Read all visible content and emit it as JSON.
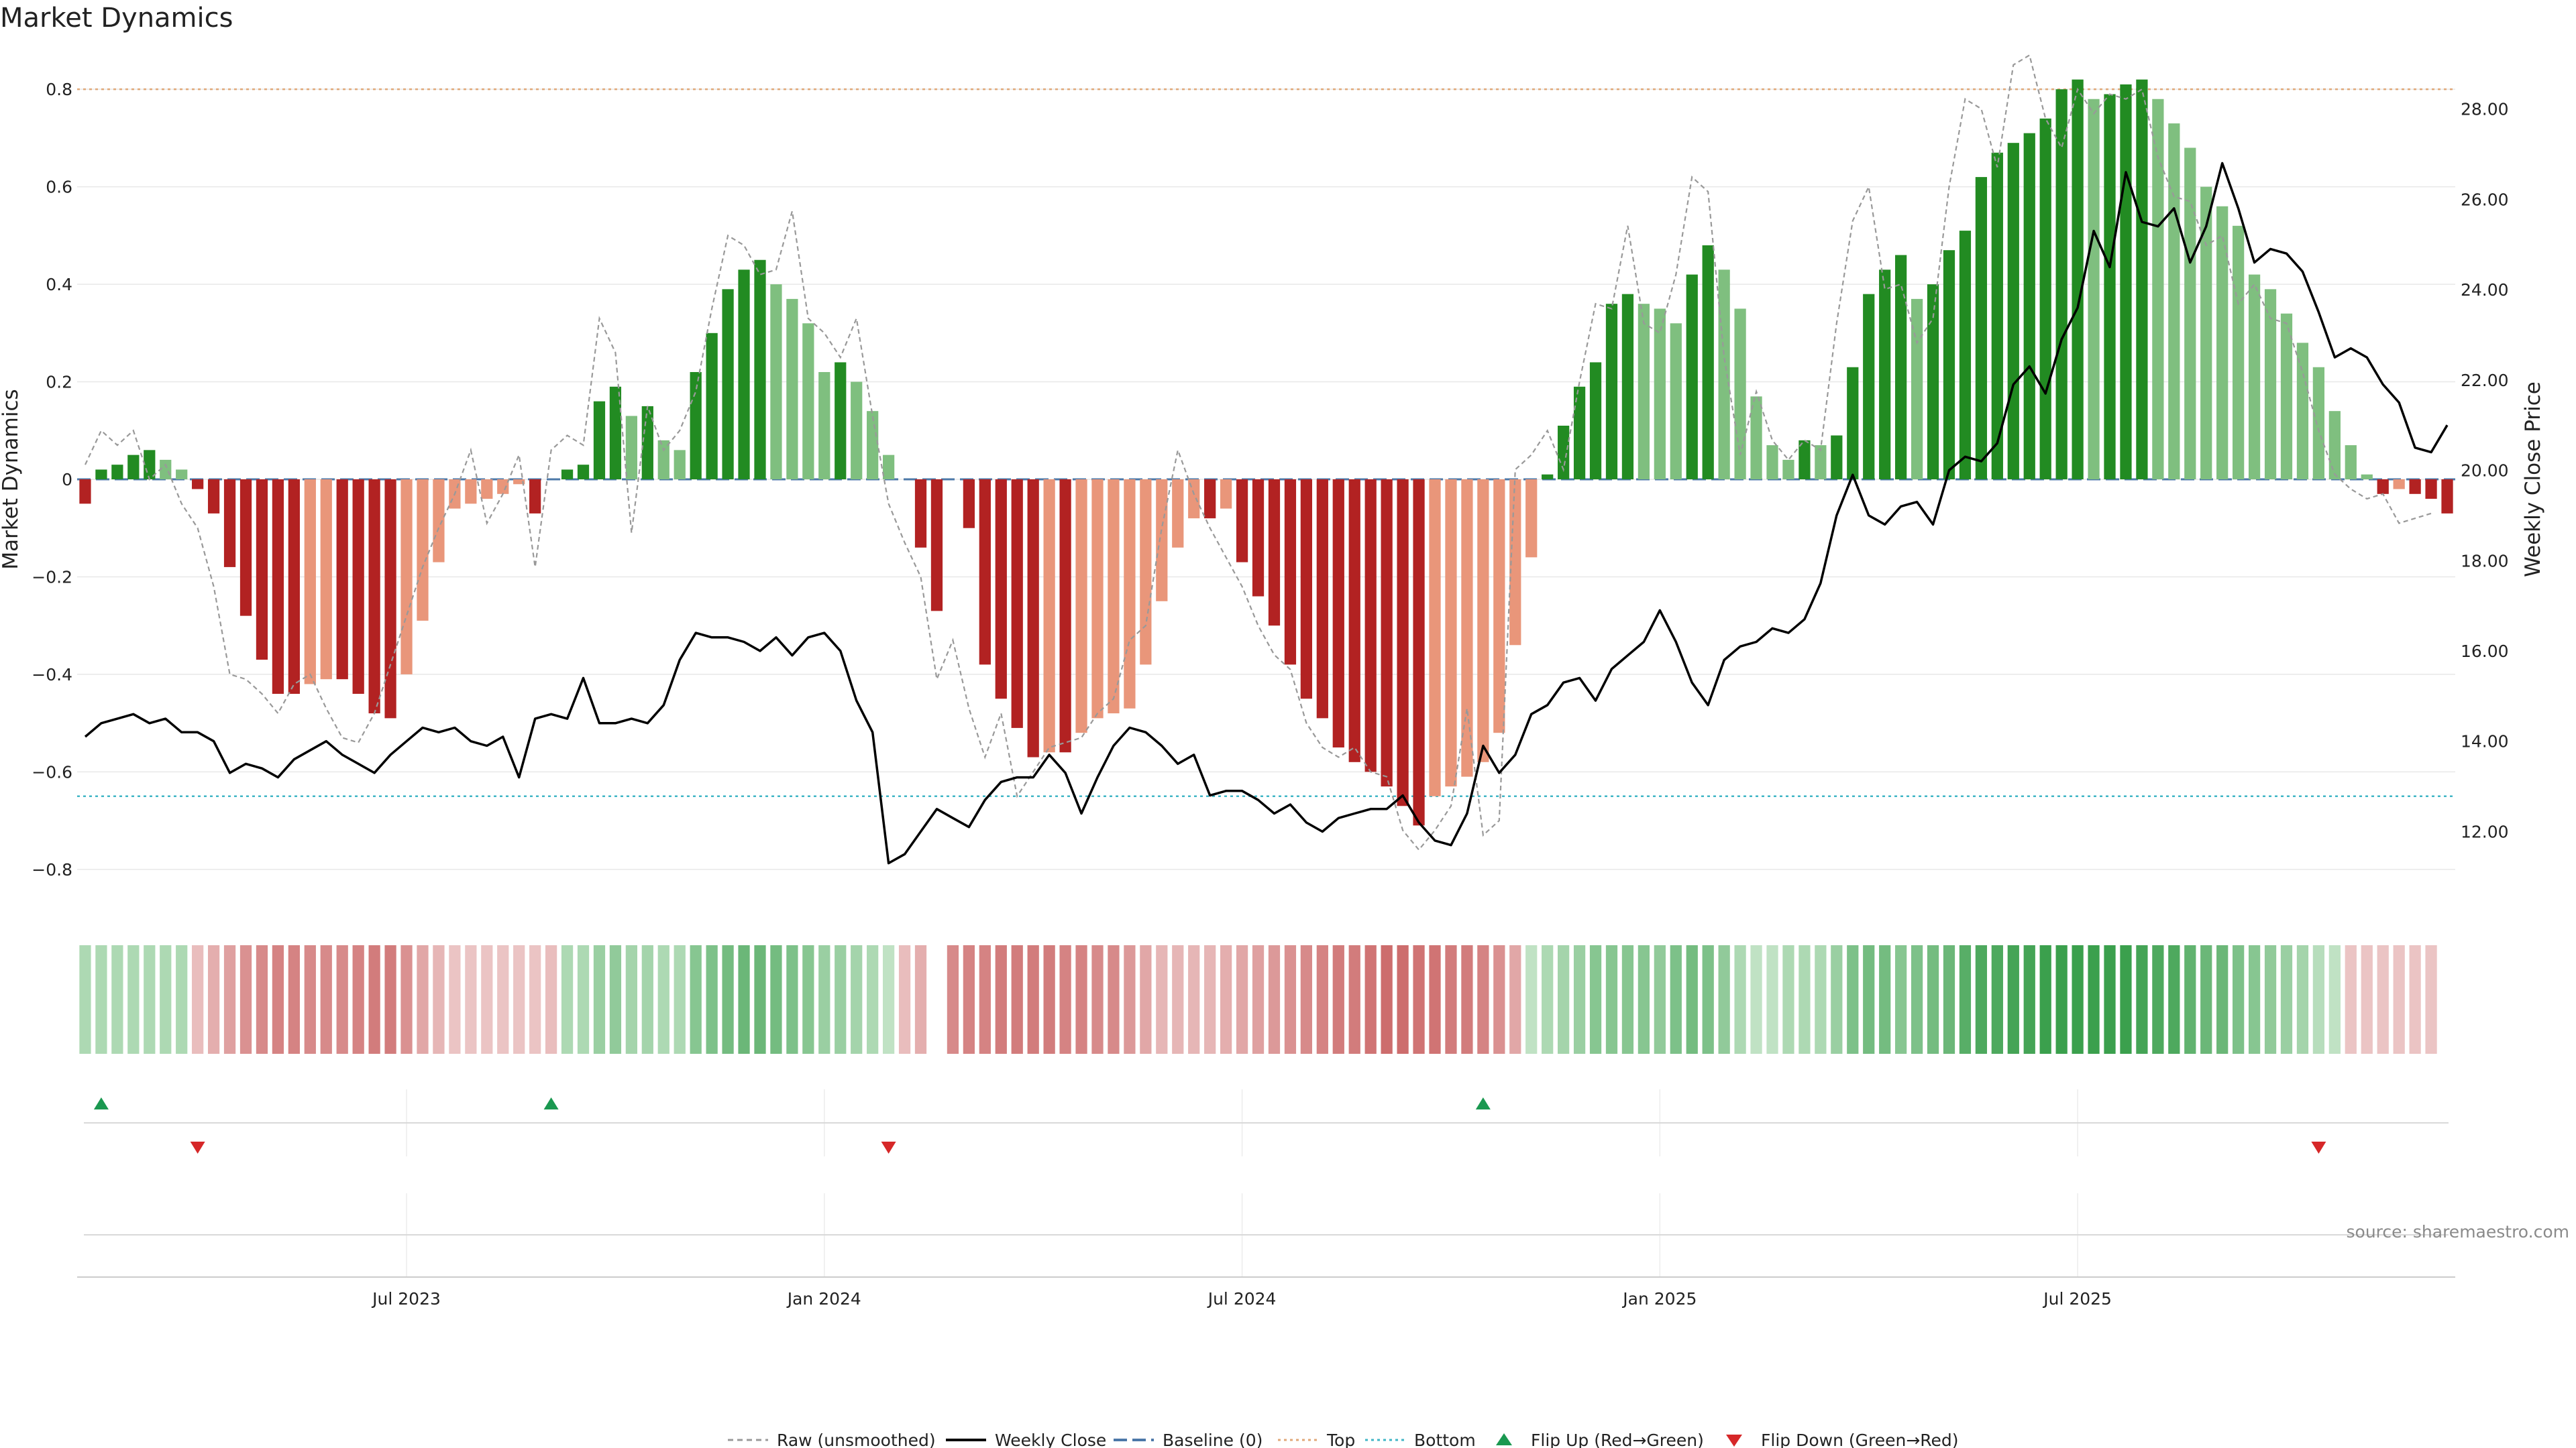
{
  "chart_data": {
    "type": "bar",
    "title": "Market Dynamics",
    "ylabel": "Market Dynamics",
    "y2label": "Weekly Close Price",
    "ylim": [
      -0.88,
      0.88
    ],
    "y2lim": [
      10.3,
      29.3
    ],
    "yticks": [
      -0.8,
      -0.6,
      -0.4,
      -0.2,
      0,
      0.2,
      0.4,
      0.6,
      0.8
    ],
    "ytick_labels": [
      "−0.8",
      "−0.6",
      "−0.4",
      "−0.2",
      "0",
      "0.2",
      "0.4",
      "0.6",
      "0.8"
    ],
    "y2ticks": [
      12,
      14,
      16,
      18,
      20,
      22,
      24,
      26,
      28
    ],
    "y2tick_labels": [
      "12.00",
      "14.00",
      "16.00",
      "18.00",
      "20.00",
      "22.00",
      "24.00",
      "26.00",
      "28.00"
    ],
    "xticks": [
      {
        "label": "Jul 2023",
        "week": 20
      },
      {
        "label": "Jan 2024",
        "week": 46
      },
      {
        "label": "Jul 2024",
        "week": 72
      },
      {
        "label": "Jan 2025",
        "week": 98
      },
      {
        "label": "Jul 2025",
        "week": 124
      }
    ],
    "top_level": 0.8,
    "bottom_level": -0.65,
    "baseline": 0,
    "grid": true,
    "legend_position": "bottom-center",
    "colors": {
      "strong_up": "#228b22",
      "weak_up": "#7fbf7f",
      "strong_down": "#b22222",
      "weak_down": "#e9967a",
      "raw": "#999999",
      "close": "#000000",
      "baseline": "#4c78a8",
      "top": "#e0a878",
      "bottom": "#40b6c6",
      "flip_up": "#1a9850",
      "flip_down": "#d62728"
    },
    "smoothed": [
      -0.05,
      0.02,
      0.03,
      0.05,
      0.06,
      0.04,
      0.02,
      -0.02,
      -0.07,
      -0.18,
      -0.28,
      -0.37,
      -0.44,
      -0.44,
      -0.42,
      -0.41,
      -0.41,
      -0.44,
      -0.48,
      -0.49,
      -0.4,
      -0.29,
      -0.17,
      -0.06,
      -0.05,
      -0.04,
      -0.03,
      -0.01,
      -0.07,
      0,
      0.02,
      0.03,
      0.16,
      0.19,
      0.13,
      0.15,
      0.08,
      0.06,
      0.22,
      0.3,
      0.39,
      0.43,
      0.45,
      0.4,
      0.37,
      0.32,
      0.22,
      0.24,
      0.2,
      0.14,
      0.05,
      0,
      -0.14,
      -0.27,
      0,
      -0.1,
      -0.38,
      -0.45,
      -0.51,
      -0.57,
      -0.56,
      -0.56,
      -0.52,
      -0.49,
      -0.48,
      -0.47,
      -0.38,
      -0.25,
      -0.14,
      -0.08,
      -0.08,
      -0.06,
      -0.17,
      -0.24,
      -0.3,
      -0.38,
      -0.45,
      -0.49,
      -0.55,
      -0.58,
      -0.6,
      -0.63,
      -0.67,
      -0.71,
      -0.65,
      -0.63,
      -0.61,
      -0.58,
      -0.52,
      -0.34,
      -0.16,
      0.01,
      0.11,
      0.19,
      0.24,
      0.36,
      0.38,
      0.36,
      0.35,
      0.32,
      0.42,
      0.48,
      0.43,
      0.35,
      0.17,
      0.07,
      0.04,
      0.08,
      0.07,
      0.09,
      0.23,
      0.38,
      0.43,
      0.46,
      0.37,
      0.4,
      0.47,
      0.51,
      0.62,
      0.67,
      0.69,
      0.71,
      0.74,
      0.8,
      0.82,
      0.78,
      0.79,
      0.81,
      0.82,
      0.78,
      0.73,
      0.68,
      0.6,
      0.56,
      0.52,
      0.42,
      0.39,
      0.34,
      0.28,
      0.23,
      0.14,
      0.07,
      0.01,
      -0.03,
      -0.02,
      -0.03,
      -0.04,
      -0.07
    ],
    "raw": [
      0.03,
      0.1,
      0.07,
      0.1,
      0.0,
      0.03,
      -0.05,
      -0.1,
      -0.22,
      -0.4,
      -0.41,
      -0.44,
      -0.48,
      -0.42,
      -0.4,
      -0.47,
      -0.53,
      -0.54,
      -0.48,
      -0.38,
      -0.28,
      -0.18,
      -0.1,
      -0.03,
      0.06,
      -0.09,
      -0.03,
      0.05,
      -0.18,
      0.06,
      0.09,
      0.07,
      0.33,
      0.26,
      -0.11,
      0.15,
      0.06,
      0.1,
      0.18,
      0.35,
      0.5,
      0.48,
      0.42,
      0.43,
      0.55,
      0.33,
      0.3,
      0.25,
      0.33,
      0.13,
      -0.05,
      -0.13,
      -0.2,
      -0.41,
      -0.33,
      -0.47,
      -0.57,
      -0.48,
      -0.65,
      -0.6,
      -0.55,
      -0.54,
      -0.53,
      -0.48,
      -0.45,
      -0.33,
      -0.3,
      -0.1,
      0.06,
      -0.03,
      -0.1,
      -0.16,
      -0.22,
      -0.3,
      -0.36,
      -0.39,
      -0.5,
      -0.55,
      -0.57,
      -0.55,
      -0.6,
      -0.61,
      -0.72,
      -0.76,
      -0.72,
      -0.67,
      -0.47,
      -0.73,
      -0.7,
      0.02,
      0.05,
      0.1,
      0.02,
      0.2,
      0.36,
      0.35,
      0.52,
      0.32,
      0.3,
      0.42,
      0.62,
      0.59,
      0.25,
      0.05,
      0.18,
      0.08,
      0.04,
      0.08,
      0.06,
      0.32,
      0.53,
      0.6,
      0.39,
      0.4,
      0.28,
      0.33,
      0.6,
      0.78,
      0.76,
      0.64,
      0.85,
      0.87,
      0.74,
      0.68,
      0.8,
      0.75,
      0.79,
      0.78,
      0.8,
      0.66,
      0.58,
      0.57,
      0.48,
      0.5,
      0.36,
      0.4,
      0.33,
      0.32,
      0.22,
      0.1,
      0.01,
      -0.02,
      -0.04,
      -0.03,
      -0.09,
      -0.08,
      -0.07
    ],
    "close": [
      14.1,
      14.4,
      14.5,
      14.6,
      14.4,
      14.5,
      14.2,
      14.2,
      14.0,
      13.3,
      13.5,
      13.4,
      13.2,
      13.6,
      13.8,
      14.0,
      13.7,
      13.5,
      13.3,
      13.7,
      14.0,
      14.3,
      14.2,
      14.3,
      14.0,
      13.9,
      14.1,
      13.2,
      14.5,
      14.6,
      14.5,
      15.4,
      14.4,
      14.4,
      14.5,
      14.4,
      14.8,
      15.8,
      16.4,
      16.3,
      16.3,
      16.2,
      16.0,
      16.3,
      15.9,
      16.3,
      16.4,
      16.0,
      14.9,
      14.2,
      11.3,
      11.5,
      12.0,
      12.5,
      12.3,
      12.1,
      12.7,
      13.1,
      13.2,
      13.2,
      13.7,
      13.3,
      12.4,
      13.2,
      13.9,
      14.3,
      14.2,
      13.9,
      13.5,
      13.7,
      12.8,
      12.9,
      12.9,
      12.7,
      12.4,
      12.6,
      12.2,
      12.0,
      12.3,
      12.4,
      12.5,
      12.5,
      12.8,
      12.2,
      11.8,
      11.7,
      12.4,
      13.9,
      13.3,
      13.7,
      14.6,
      14.8,
      15.3,
      15.4,
      14.9,
      15.6,
      15.9,
      16.2,
      16.9,
      16.2,
      15.3,
      14.8,
      15.8,
      16.1,
      16.2,
      16.5,
      16.4,
      16.7,
      17.5,
      19.0,
      19.9,
      19.0,
      18.8,
      19.2,
      19.3,
      18.8,
      20.0,
      20.3,
      20.2,
      20.6,
      21.9,
      22.3,
      21.7,
      22.9,
      23.6,
      25.3,
      24.5,
      26.6,
      25.5,
      25.4,
      25.8,
      24.6,
      25.4,
      26.8,
      25.8,
      24.6,
      24.9,
      24.8,
      24.4,
      23.5,
      22.5,
      22.7,
      22.5,
      21.9,
      21.5,
      20.5,
      20.4,
      21.0
    ],
    "heat_strip": [
      0.3,
      0.3,
      0.3,
      0.3,
      0.3,
      0.3,
      0.3,
      -0.25,
      -0.35,
      -0.45,
      -0.55,
      -0.6,
      -0.65,
      -0.65,
      -0.6,
      -0.6,
      -0.6,
      -0.65,
      -0.7,
      -0.7,
      -0.55,
      -0.4,
      -0.3,
      -0.2,
      -0.2,
      -0.2,
      -0.2,
      -0.2,
      -0.2,
      -0.25,
      0.3,
      0.3,
      0.4,
      0.45,
      0.35,
      0.35,
      0.3,
      0.3,
      0.5,
      0.55,
      0.6,
      0.65,
      0.65,
      0.6,
      0.55,
      0.5,
      0.4,
      0.4,
      0.35,
      0.3,
      0.2,
      -0.25,
      -0.35,
      null,
      -0.6,
      -0.65,
      -0.65,
      -0.7,
      -0.7,
      -0.7,
      -0.7,
      -0.65,
      -0.65,
      -0.6,
      -0.6,
      -0.5,
      -0.4,
      -0.3,
      -0.3,
      -0.3,
      -0.3,
      -0.35,
      -0.4,
      -0.45,
      -0.5,
      -0.55,
      -0.6,
      -0.65,
      -0.7,
      -0.7,
      -0.75,
      -0.8,
      -0.8,
      -0.75,
      -0.75,
      -0.7,
      -0.7,
      -0.65,
      -0.55,
      -0.4,
      0.2,
      0.3,
      0.35,
      0.4,
      0.5,
      0.5,
      0.5,
      0.5,
      0.45,
      0.55,
      0.6,
      0.55,
      0.45,
      0.3,
      0.2,
      0.2,
      0.3,
      0.3,
      0.3,
      0.4,
      0.55,
      0.6,
      0.6,
      0.5,
      0.55,
      0.6,
      0.65,
      0.75,
      0.8,
      0.8,
      0.85,
      0.85,
      0.9,
      0.9,
      0.9,
      0.9,
      0.9,
      0.9,
      0.85,
      0.8,
      0.8,
      0.7,
      0.65,
      0.65,
      0.55,
      0.5,
      0.45,
      0.4,
      0.35,
      0.25,
      0.2,
      -0.2,
      -0.2,
      -0.2,
      -0.2,
      -0.2,
      -0.2
    ],
    "flips_up": [
      1,
      29,
      87
    ],
    "flips_down": [
      7,
      50,
      139
    ]
  },
  "legend": {
    "raw": "Raw (unsmoothed)",
    "close": "Weekly Close",
    "baseline": "Baseline (0)",
    "top": "Top",
    "bottom": "Bottom",
    "flip_up": "Flip Up (Red→Green)",
    "flip_down": "Flip Down (Green→Red)"
  },
  "source": "source: sharemaestro.com"
}
